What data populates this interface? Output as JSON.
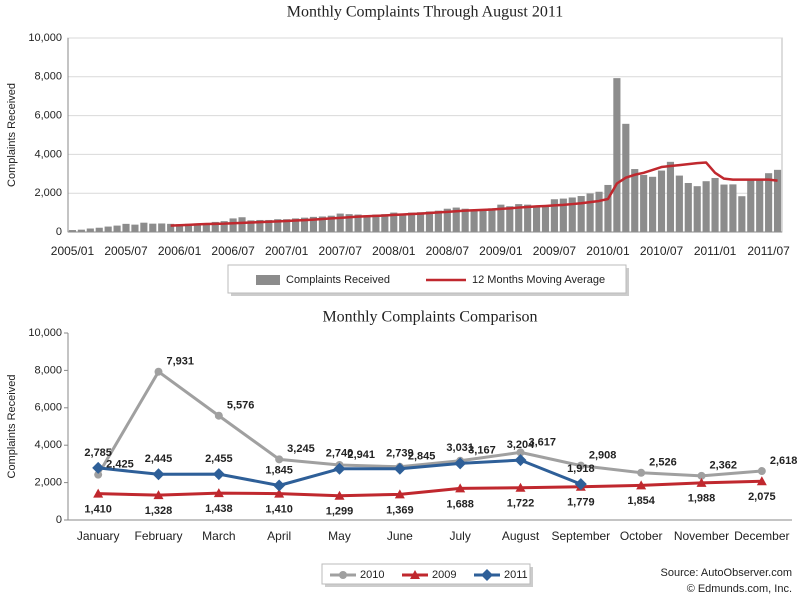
{
  "chart_data": [
    {
      "type": "bar",
      "title": "Monthly Complaints Through August 2011",
      "y_label": "Complaints Received",
      "categories": [
        "2005/01",
        null,
        null,
        null,
        null,
        null,
        "2005/07",
        null,
        null,
        null,
        null,
        null,
        "2006/01",
        null,
        null,
        null,
        null,
        null,
        "2006/07",
        null,
        null,
        null,
        null,
        null,
        "2007/01",
        null,
        null,
        null,
        null,
        null,
        "2007/07",
        null,
        null,
        null,
        null,
        null,
        "2008/01",
        null,
        null,
        null,
        null,
        null,
        "2008/07",
        null,
        null,
        null,
        null,
        null,
        "2009/01",
        null,
        null,
        null,
        null,
        null,
        "2009/07",
        null,
        null,
        null,
        null,
        null,
        "2010/01",
        null,
        null,
        null,
        null,
        null,
        "2010/07",
        null,
        null,
        null,
        null,
        null,
        "2011/01",
        null,
        null,
        null,
        null,
        null,
        "2011/07",
        null
      ],
      "series": [
        {
          "name": "Complaints Received",
          "color": "#8c8c8c",
          "values": [
            100,
            120,
            180,
            220,
            280,
            330,
            420,
            380,
            480,
            430,
            440,
            420,
            400,
            420,
            440,
            460,
            520,
            560,
            700,
            760,
            600,
            620,
            620,
            660,
            660,
            700,
            740,
            780,
            800,
            840,
            950,
            920,
            900,
            860,
            900,
            920,
            1000,
            940,
            1000,
            1020,
            1060,
            1100,
            1200,
            1260,
            1200,
            1160,
            1150,
            1220,
            1410,
            1328,
            1438,
            1410,
            1299,
            1369,
            1688,
            1722,
            1779,
            1854,
            1988,
            2075,
            2425,
            7931,
            5576,
            3245,
            2941,
            2845,
            3167,
            3617,
            2908,
            2526,
            2362,
            2618,
            2785,
            2445,
            2455,
            1845,
            2740,
            2739,
            3031,
            3204
          ]
        },
        {
          "name": "12 Months Moving Average",
          "color": "#c0282e",
          "type": "line",
          "values": [
            null,
            null,
            null,
            null,
            null,
            null,
            null,
            null,
            null,
            null,
            null,
            330,
            350,
            370,
            390,
            410,
            420,
            430,
            450,
            470,
            490,
            510,
            530,
            550,
            570,
            590,
            610,
            640,
            670,
            700,
            730,
            760,
            790,
            810,
            830,
            850,
            880,
            900,
            930,
            950,
            980,
            1010,
            1040,
            1070,
            1100,
            1120,
            1140,
            1160,
            1190,
            1220,
            1260,
            1290,
            1320,
            1340,
            1370,
            1400,
            1440,
            1480,
            1540,
            1600,
            1700,
            2500,
            2800,
            2950,
            3050,
            3200,
            3350,
            3400,
            3450,
            3500,
            3550,
            3580,
            3050,
            2750,
            2700,
            2700,
            2700,
            2700,
            2700,
            2650
          ]
        }
      ],
      "ylim": [
        0,
        10000
      ],
      "yticks": [
        0,
        {
          "value": 2000,
          "label": "2,000"
        },
        {
          "value": 4000,
          "label": "4,000"
        },
        {
          "value": 6000,
          "label": "6,000"
        },
        {
          "value": 8000,
          "label": "8,000"
        },
        {
          "value": 10000,
          "label": "10,000"
        }
      ],
      "grid": true,
      "legend": "bottom"
    },
    {
      "type": "line",
      "title": "Monthly Complaints Comparison",
      "y_label": "Complaints Received",
      "categories": [
        "January",
        "February",
        "March",
        "April",
        "May",
        "June",
        "July",
        "August",
        "September",
        "October",
        "November",
        "December"
      ],
      "series": [
        {
          "name": "2010",
          "color": "#a0a0a0",
          "marker": "circle",
          "label_color": "#555555",
          "values": [
            2425,
            7931,
            5576,
            3245,
            2941,
            2845,
            3167,
            3617,
            2908,
            2526,
            2362,
            2618
          ],
          "value_labels": [
            "2,425",
            "7,931",
            "5,576",
            "3,245",
            "2,941",
            "2,845",
            "3,167",
            "3,617",
            "2,908",
            "2,526",
            "2,362",
            "2,618"
          ]
        },
        {
          "name": "2009",
          "color": "#c0282e",
          "marker": "triangle",
          "label_color": "#c0282e",
          "values": [
            1410,
            1328,
            1438,
            1410,
            1299,
            1369,
            1688,
            1722,
            1779,
            1854,
            1988,
            2075
          ],
          "value_labels": [
            "1,410",
            "1,328",
            "1,438",
            "1,410",
            "1,299",
            "1,369",
            "1,688",
            "1,722",
            "1,779",
            "1,854",
            "1,988",
            "2,075"
          ]
        },
        {
          "name": "2011",
          "color": "#2e5f98",
          "marker": "diamond",
          "label_color": "#2e5f98",
          "values": [
            2785,
            2445,
            2455,
            1845,
            2740,
            2739,
            3031,
            3204,
            1918,
            null,
            null,
            null
          ],
          "value_labels": [
            "2,785",
            "2,445",
            "2,455",
            "1,845",
            "2,740",
            "2,739",
            "3,031",
            "3,204",
            "1,918",
            null,
            null,
            null
          ]
        }
      ],
      "ylim": [
        0,
        10000
      ],
      "yticks": [
        0,
        {
          "value": 2000,
          "label": "2,000"
        },
        {
          "value": 4000,
          "label": "4,000"
        },
        {
          "value": 6000,
          "label": "6,000"
        },
        {
          "value": 8000,
          "label": "8,000"
        },
        {
          "value": 10000,
          "label": "10,000"
        }
      ],
      "grid": false,
      "legend": "bottom",
      "annotations": [
        "Source: AutoObserver.com",
        "© Edmunds.com,  Inc."
      ]
    }
  ]
}
